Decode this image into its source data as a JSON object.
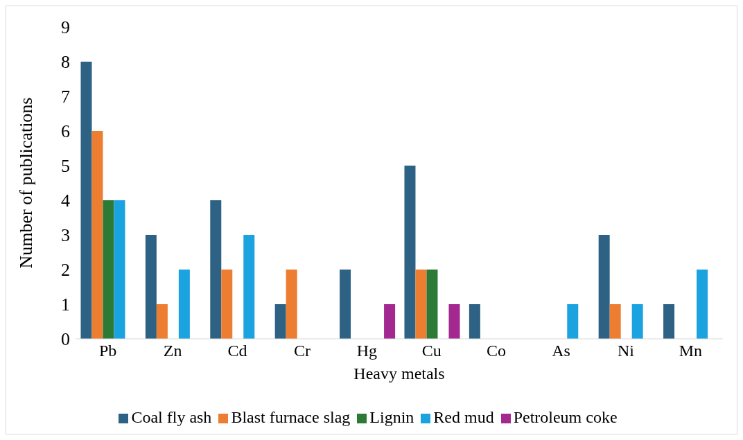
{
  "chart_data": {
    "type": "bar",
    "xlabel": "Heavy metals",
    "ylabel": "Number of publications",
    "categories": [
      "Pb",
      "Zn",
      "Cd",
      "Cr",
      "Hg",
      "Cu",
      "Co",
      "As",
      "Ni",
      "Mn"
    ],
    "series": [
      {
        "name": "Coal fly ash",
        "color": "#2e6284",
        "values": [
          8,
          3,
          4,
          1,
          2,
          5,
          1,
          0,
          3,
          1
        ]
      },
      {
        "name": "Blast furnace slag",
        "color": "#ed7d31",
        "values": [
          6,
          1,
          2,
          2,
          0,
          2,
          0,
          0,
          1,
          0
        ]
      },
      {
        "name": "Lignin",
        "color": "#2c7a36",
        "values": [
          4,
          0,
          0,
          0,
          0,
          2,
          0,
          0,
          0,
          0
        ]
      },
      {
        "name": "Red mud",
        "color": "#1ba3e0",
        "values": [
          4,
          2,
          3,
          0,
          0,
          0,
          0,
          1,
          1,
          2
        ]
      },
      {
        "name": "Petroleum coke",
        "color": "#a3288f",
        "values": [
          0,
          0,
          0,
          0,
          1,
          1,
          0,
          0,
          0,
          0
        ]
      }
    ],
    "ylim": [
      0,
      9
    ],
    "yticks": [
      0,
      1,
      2,
      3,
      4,
      5,
      6,
      7,
      8,
      9
    ],
    "grid": false,
    "legend": "bottom"
  }
}
